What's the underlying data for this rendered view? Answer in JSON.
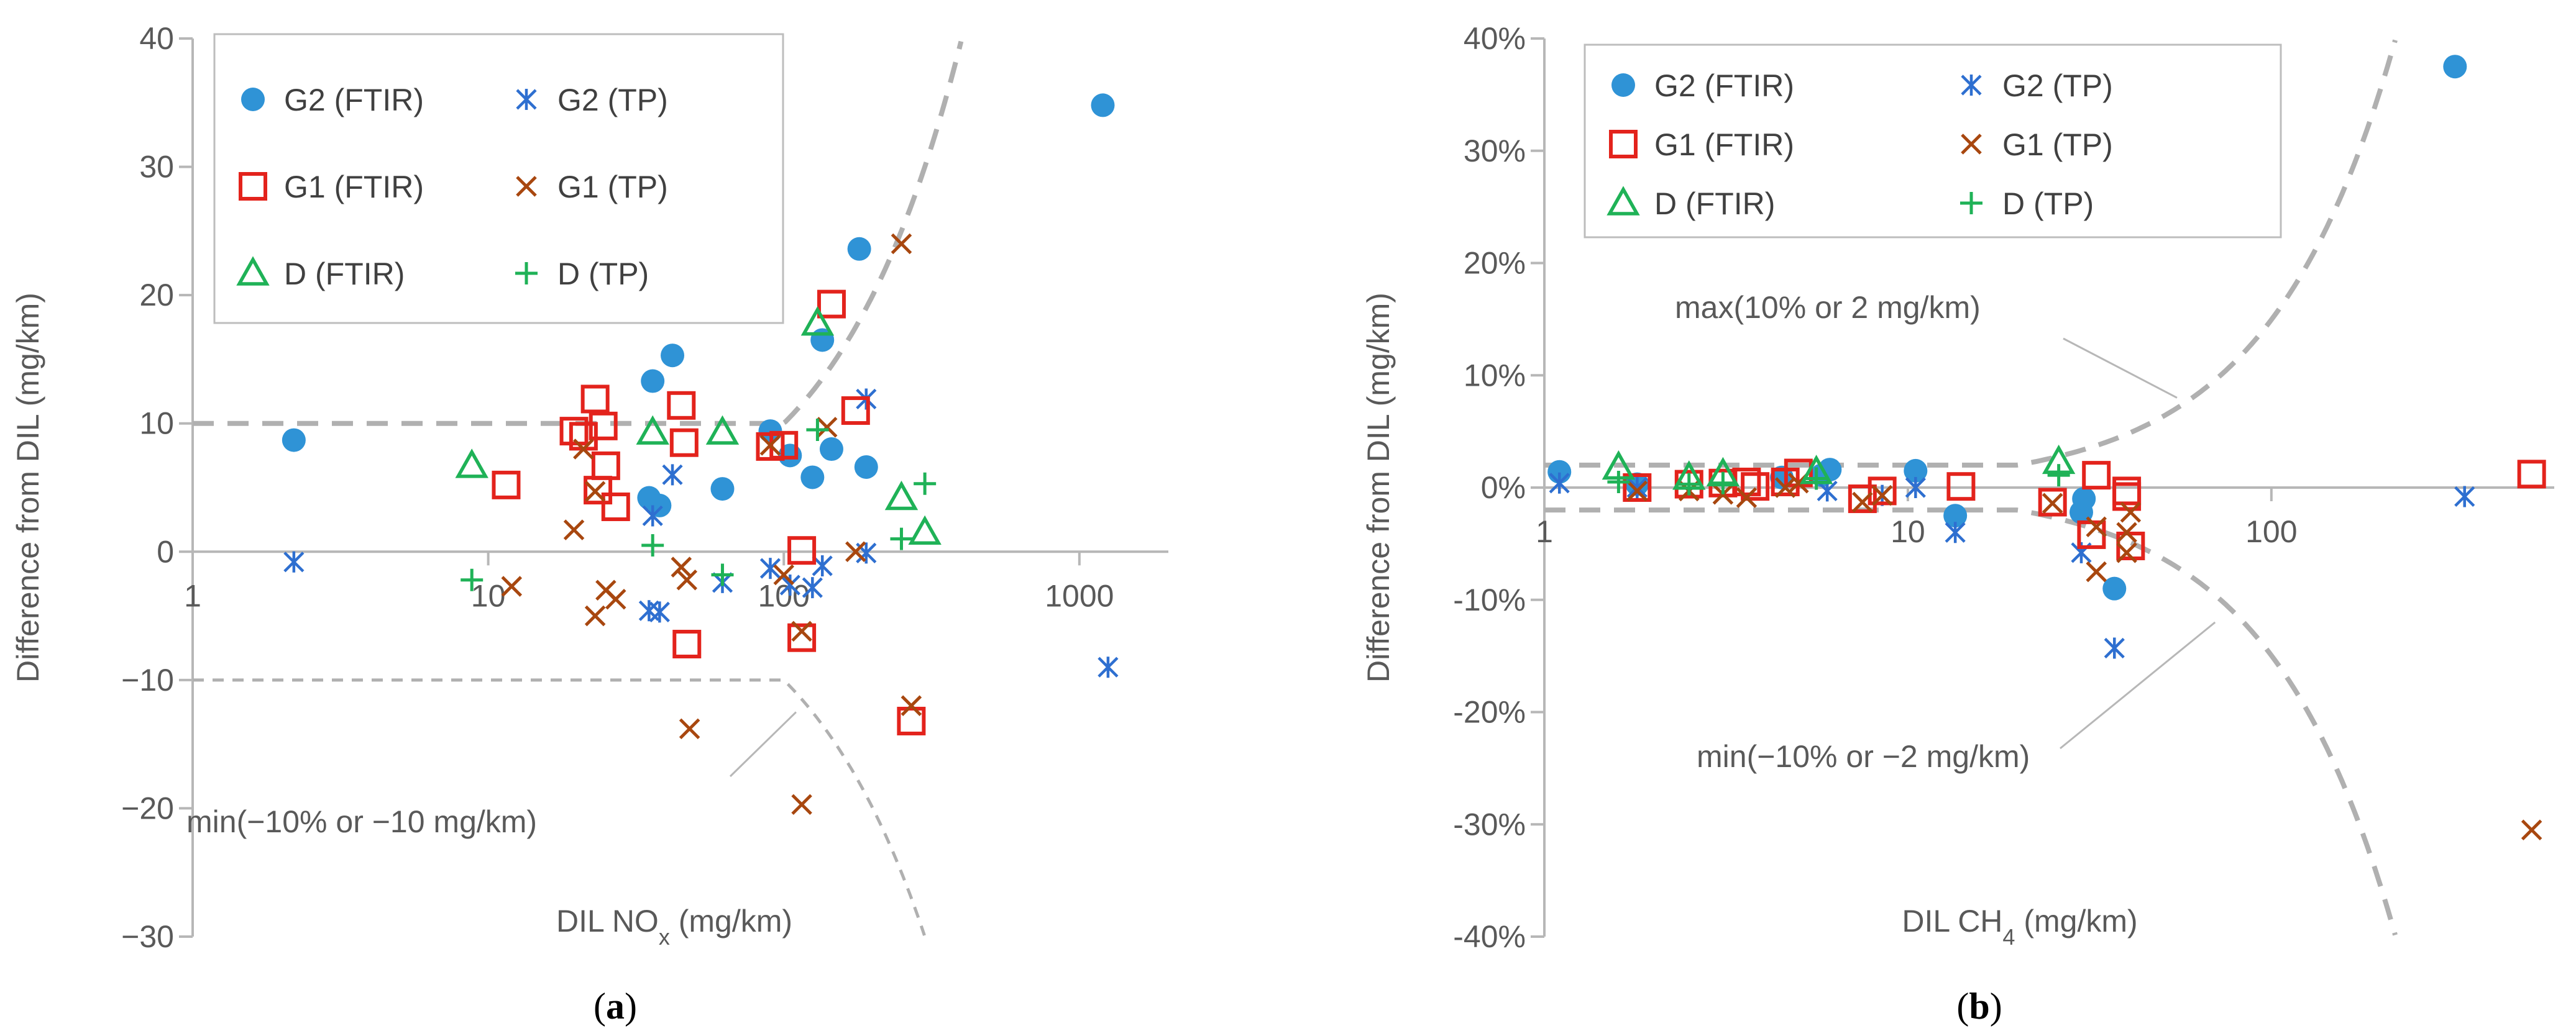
{
  "colors": {
    "g2_ftir": "#2f93d6",
    "g2_tp": "#2e6fd0",
    "g1_ftir": "#e3231c",
    "g1_tp": "#a8470f",
    "d_ftir": "#1fb257",
    "d_tp": "#1fb257",
    "axis": "#b7b7b7",
    "limit": "#b0b0b0",
    "text": "#595959"
  },
  "legend": [
    {
      "key": "g2_ftir",
      "label": "G2 (FTIR)",
      "marker": "circle"
    },
    {
      "key": "g2_tp",
      "label": "G2 (TP)",
      "marker": "asterisk"
    },
    {
      "key": "g1_ftir",
      "label": "G1 (FTIR)",
      "marker": "square"
    },
    {
      "key": "g1_tp",
      "label": "G1 (TP)",
      "marker": "x"
    },
    {
      "key": "d_ftir",
      "label": "D (FTIR)",
      "marker": "triangle"
    },
    {
      "key": "d_tp",
      "label": "D (TP)",
      "marker": "plus"
    }
  ],
  "chart_data": [
    {
      "type": "scatter",
      "panel_label": "a",
      "xlabel_main": "DIL NO",
      "xlabel_sub": "x",
      "xlabel_unit": " (mg/km)",
      "ylabel": "Difference from DIL (mg/km)",
      "xscale": "log",
      "xlim": [
        1,
        2000
      ],
      "ylim": [
        -30,
        40
      ],
      "xticks": [
        {
          "value": 1,
          "label": "1"
        },
        {
          "value": 10,
          "label": "10"
        },
        {
          "value": 100,
          "label": "100"
        },
        {
          "value": 1000,
          "label": "1000"
        }
      ],
      "yticks": [
        {
          "value": 40,
          "label": "40"
        },
        {
          "value": 30,
          "label": "30"
        },
        {
          "value": 20,
          "label": "20"
        },
        {
          "value": 10,
          "label": "10"
        },
        {
          "value": 0,
          "label": "0"
        },
        {
          "value": -10,
          "label": "−10"
        },
        {
          "value": -20,
          "label": "−20"
        },
        {
          "value": -30,
          "label": "−30"
        }
      ],
      "limits": {
        "type": "abs_pct",
        "abs": 10,
        "pct": 0.1,
        "upper": true,
        "lower": true
      },
      "annotation": {
        "text": "min(−10% or −10 mg/km)",
        "leader_from_x": 110,
        "leader_from_y": -12.5
      },
      "series": [
        {
          "key": "g2_ftir",
          "name": "G2 (FTIR)",
          "points": [
            [
              2.2,
              8.7
            ],
            [
              35,
              4.2
            ],
            [
              36,
              13.3
            ],
            [
              38,
              3.6
            ],
            [
              42,
              15.3
            ],
            [
              62,
              4.9
            ],
            [
              90,
              9.4
            ],
            [
              105,
              7.5
            ],
            [
              125,
              5.8
            ],
            [
              135,
              16.5
            ],
            [
              145,
              8
            ],
            [
              180,
              23.6
            ],
            [
              190,
              6.6
            ],
            [
              1200,
              34.8
            ]
          ]
        },
        {
          "key": "g2_tp",
          "name": "G2 (TP)",
          "points": [
            [
              2.2,
              -0.8
            ],
            [
              35,
              -4.6
            ],
            [
              36,
              2.8
            ],
            [
              38,
              -4.7
            ],
            [
              42,
              6
            ],
            [
              62,
              -2.4
            ],
            [
              90,
              -1.3
            ],
            [
              105,
              -2.6
            ],
            [
              125,
              -2.8
            ],
            [
              135,
              -1.1
            ],
            [
              190,
              -0.1
            ],
            [
              190,
              11.9
            ],
            [
              1250,
              -9
            ]
          ]
        },
        {
          "key": "g1_ftir",
          "name": "G1 (FTIR)",
          "points": [
            [
              11.5,
              5.2
            ],
            [
              19.5,
              9.4
            ],
            [
              21,
              9
            ],
            [
              23,
              11.9
            ],
            [
              23.5,
              4.8
            ],
            [
              24.5,
              9.8
            ],
            [
              25,
              6.7
            ],
            [
              27,
              3.5
            ],
            [
              45,
              11.4
            ],
            [
              46,
              8.5
            ],
            [
              47,
              -7.2
            ],
            [
              90,
              8.2
            ],
            [
              100,
              8.3
            ],
            [
              115,
              0.1
            ],
            [
              115,
              -6.7
            ],
            [
              145,
              19.3
            ],
            [
              175,
              11
            ],
            [
              270,
              -13.2
            ]
          ]
        },
        {
          "key": "g1_tp",
          "name": "G1 (TP)",
          "points": [
            [
              12,
              -2.7
            ],
            [
              19.5,
              1.7
            ],
            [
              21,
              8
            ],
            [
              23,
              4.7
            ],
            [
              23,
              -5
            ],
            [
              25,
              -3
            ],
            [
              27,
              -3.7
            ],
            [
              45,
              -1.2
            ],
            [
              47,
              -2.2
            ],
            [
              48,
              -13.8
            ],
            [
              90,
              8.3
            ],
            [
              100,
              -1.8
            ],
            [
              115,
              -19.7
            ],
            [
              115,
              -6.2
            ],
            [
              140,
              9.7
            ],
            [
              175,
              0
            ],
            [
              250,
              24
            ],
            [
              270,
              -12
            ]
          ]
        },
        {
          "key": "d_ftir",
          "name": "D (FTIR)",
          "points": [
            [
              8.8,
              6.7
            ],
            [
              36,
              9.3
            ],
            [
              62,
              9.3
            ],
            [
              130,
              17.8
            ],
            [
              250,
              4.2
            ],
            [
              300,
              1.5
            ]
          ]
        },
        {
          "key": "d_tp",
          "name": "D (TP)",
          "points": [
            [
              8.8,
              -2.2
            ],
            [
              36,
              0.5
            ],
            [
              62,
              -1.8
            ],
            [
              130,
              9.5
            ],
            [
              250,
              1
            ],
            [
              300,
              5.3
            ]
          ]
        }
      ]
    },
    {
      "type": "scatter",
      "panel_label": "b",
      "xlabel_main": "DIL CH",
      "xlabel_sub": "4",
      "xlabel_unit": " (mg/km)",
      "ylabel": "Difference from DIL (mg/km)",
      "xscale": "log",
      "xlim": [
        1,
        600
      ],
      "ylim": [
        -40,
        40
      ],
      "xticks": [
        {
          "value": 1,
          "label": "1"
        },
        {
          "value": 10,
          "label": "10"
        },
        {
          "value": 100,
          "label": "100"
        }
      ],
      "yticks": [
        {
          "value": 40,
          "label": "40%"
        },
        {
          "value": 30,
          "label": "30%"
        },
        {
          "value": 20,
          "label": "20%"
        },
        {
          "value": 10,
          "label": "10%"
        },
        {
          "value": 0,
          "label": "0%"
        },
        {
          "value": -10,
          "label": "-10%"
        },
        {
          "value": -20,
          "label": "-20%"
        },
        {
          "value": -30,
          "label": "-30%"
        },
        {
          "value": -40,
          "label": "-40%"
        }
      ],
      "limits": {
        "type": "pct_curve",
        "abs": 2,
        "upper": true,
        "lower": true
      },
      "annotation_upper": {
        "text": "max(10% or 2 mg/km)",
        "leader_from_x": 55,
        "leader_from_y": 8
      },
      "annotation": {
        "text": "min(−10% or −2 mg/km)",
        "leader_from_x": 70,
        "leader_from_y": -12
      },
      "series": [
        {
          "key": "g2_ftir",
          "name": "G2 (FTIR)",
          "points": [
            [
              1.1,
              1.4
            ],
            [
              1.8,
              0.3
            ],
            [
              4.5,
              0.9
            ],
            [
              5.8,
              1.1
            ],
            [
              6.1,
              1.6
            ],
            [
              10.5,
              1.5
            ],
            [
              13.5,
              -2.5
            ],
            [
              30,
              -2.2
            ],
            [
              30.5,
              -1
            ],
            [
              37,
              -9
            ],
            [
              320,
              37.5
            ]
          ]
        },
        {
          "key": "g2_tp",
          "name": "G2 (TP)",
          "points": [
            [
              1.1,
              0.4
            ],
            [
              1.8,
              0
            ],
            [
              6,
              -0.3
            ],
            [
              8.5,
              -0.7
            ],
            [
              10.5,
              0
            ],
            [
              13.5,
              -4
            ],
            [
              30,
              -5.8
            ],
            [
              37,
              -14.3
            ],
            [
              340,
              -0.8
            ]
          ]
        },
        {
          "key": "g1_ftir",
          "name": "G1 (FTIR)",
          "points": [
            [
              1.8,
              0
            ],
            [
              2.5,
              0.3
            ],
            [
              3.1,
              0.4
            ],
            [
              3.6,
              0.5
            ],
            [
              3.8,
              0.1
            ],
            [
              4.6,
              0.5
            ],
            [
              5,
              1.3
            ],
            [
              7.5,
              -1
            ],
            [
              8.5,
              -0.3
            ],
            [
              14,
              0.1
            ],
            [
              25,
              -1.3
            ],
            [
              32,
              -4.2
            ],
            [
              33,
              1.1
            ],
            [
              40,
              -0.8
            ],
            [
              40,
              -0.3
            ],
            [
              41,
              -5.2
            ],
            [
              520,
              1.2
            ]
          ]
        },
        {
          "key": "g1_tp",
          "name": "G1 (TP)",
          "points": [
            [
              1.8,
              -0.3
            ],
            [
              2.5,
              -0.3
            ],
            [
              3.1,
              -0.6
            ],
            [
              3.6,
              -0.9
            ],
            [
              4.6,
              0
            ],
            [
              5,
              0.4
            ],
            [
              7.5,
              -1.3
            ],
            [
              8.5,
              -0.7
            ],
            [
              25,
              -1.4
            ],
            [
              33,
              -7.5
            ],
            [
              33,
              -3.5
            ],
            [
              40,
              -4
            ],
            [
              40,
              -5.8
            ],
            [
              41,
              -2.2
            ],
            [
              520,
              -30.5
            ]
          ]
        },
        {
          "key": "d_ftir",
          "name": "D (FTIR)",
          "points": [
            [
              1.6,
              1.8
            ],
            [
              2.5,
              0.9
            ],
            [
              3.1,
              1.2
            ],
            [
              5.6,
              1.4
            ],
            [
              26,
              2.3
            ]
          ]
        },
        {
          "key": "d_tp",
          "name": "D (TP)",
          "points": [
            [
              1.6,
              0.5
            ],
            [
              2.5,
              0.3
            ],
            [
              3.1,
              0.4
            ],
            [
              5.6,
              0.8
            ],
            [
              26,
              1.1
            ]
          ]
        }
      ]
    }
  ]
}
